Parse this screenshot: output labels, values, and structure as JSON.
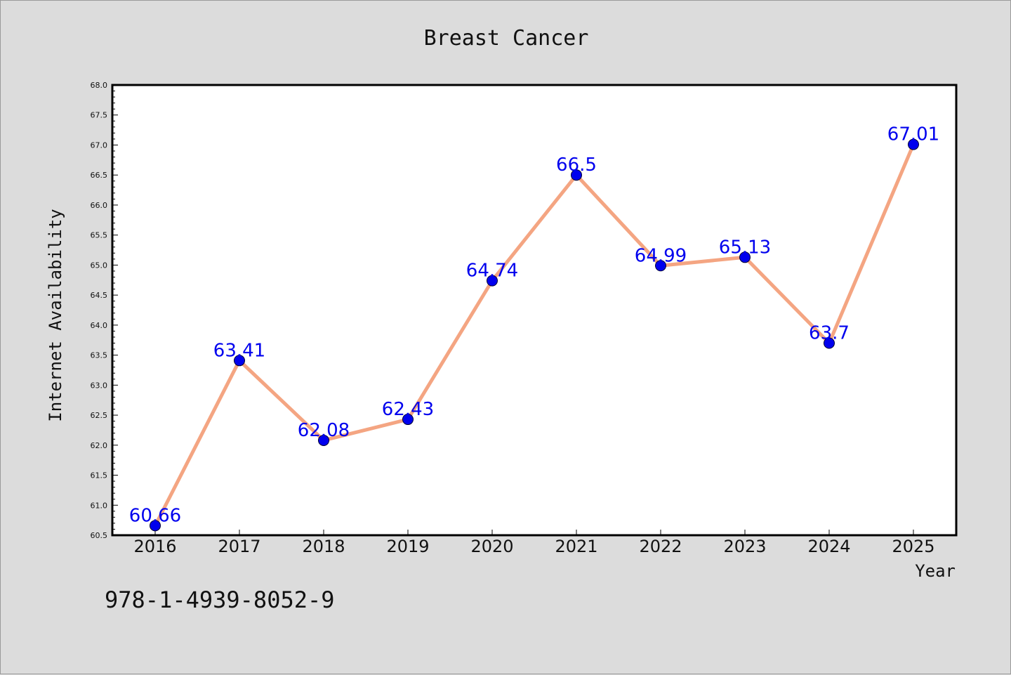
{
  "chart_data": {
    "type": "line",
    "title": "Breast Cancer",
    "xlabel": "Year",
    "ylabel": "Internet Availability",
    "categories": [
      "2016",
      "2017",
      "2018",
      "2019",
      "2020",
      "2021",
      "2022",
      "2023",
      "2024",
      "2025"
    ],
    "series": [
      {
        "values": [
          60.66,
          63.41,
          62.08,
          62.43,
          64.74,
          66.5,
          64.99,
          65.13,
          63.7,
          67.01
        ],
        "labels": [
          "60.66",
          "63.41",
          "62.08",
          "62.43",
          "64.74",
          "66.5",
          "64.99",
          "65.13",
          "63.7",
          "67.01"
        ],
        "line_color": "#f4a582",
        "marker_color": "#0000ee",
        "label_color": "#0000ee"
      }
    ],
    "ylim": [
      60.5,
      68.0
    ],
    "yticks": [
      "60.5",
      "61.0",
      "61.5",
      "62.0",
      "62.5",
      "63.0",
      "63.5",
      "64.0",
      "64.5",
      "65.0",
      "65.5",
      "66.0",
      "66.5",
      "67.0",
      "67.5",
      "68.0"
    ],
    "grid": false,
    "legend": "none"
  },
  "footer": {
    "isbn": "978-1-4939-8052-9"
  },
  "colors": {
    "background": "#dcdcdc",
    "plot_background": "#ffffff",
    "axis": "#000000"
  }
}
